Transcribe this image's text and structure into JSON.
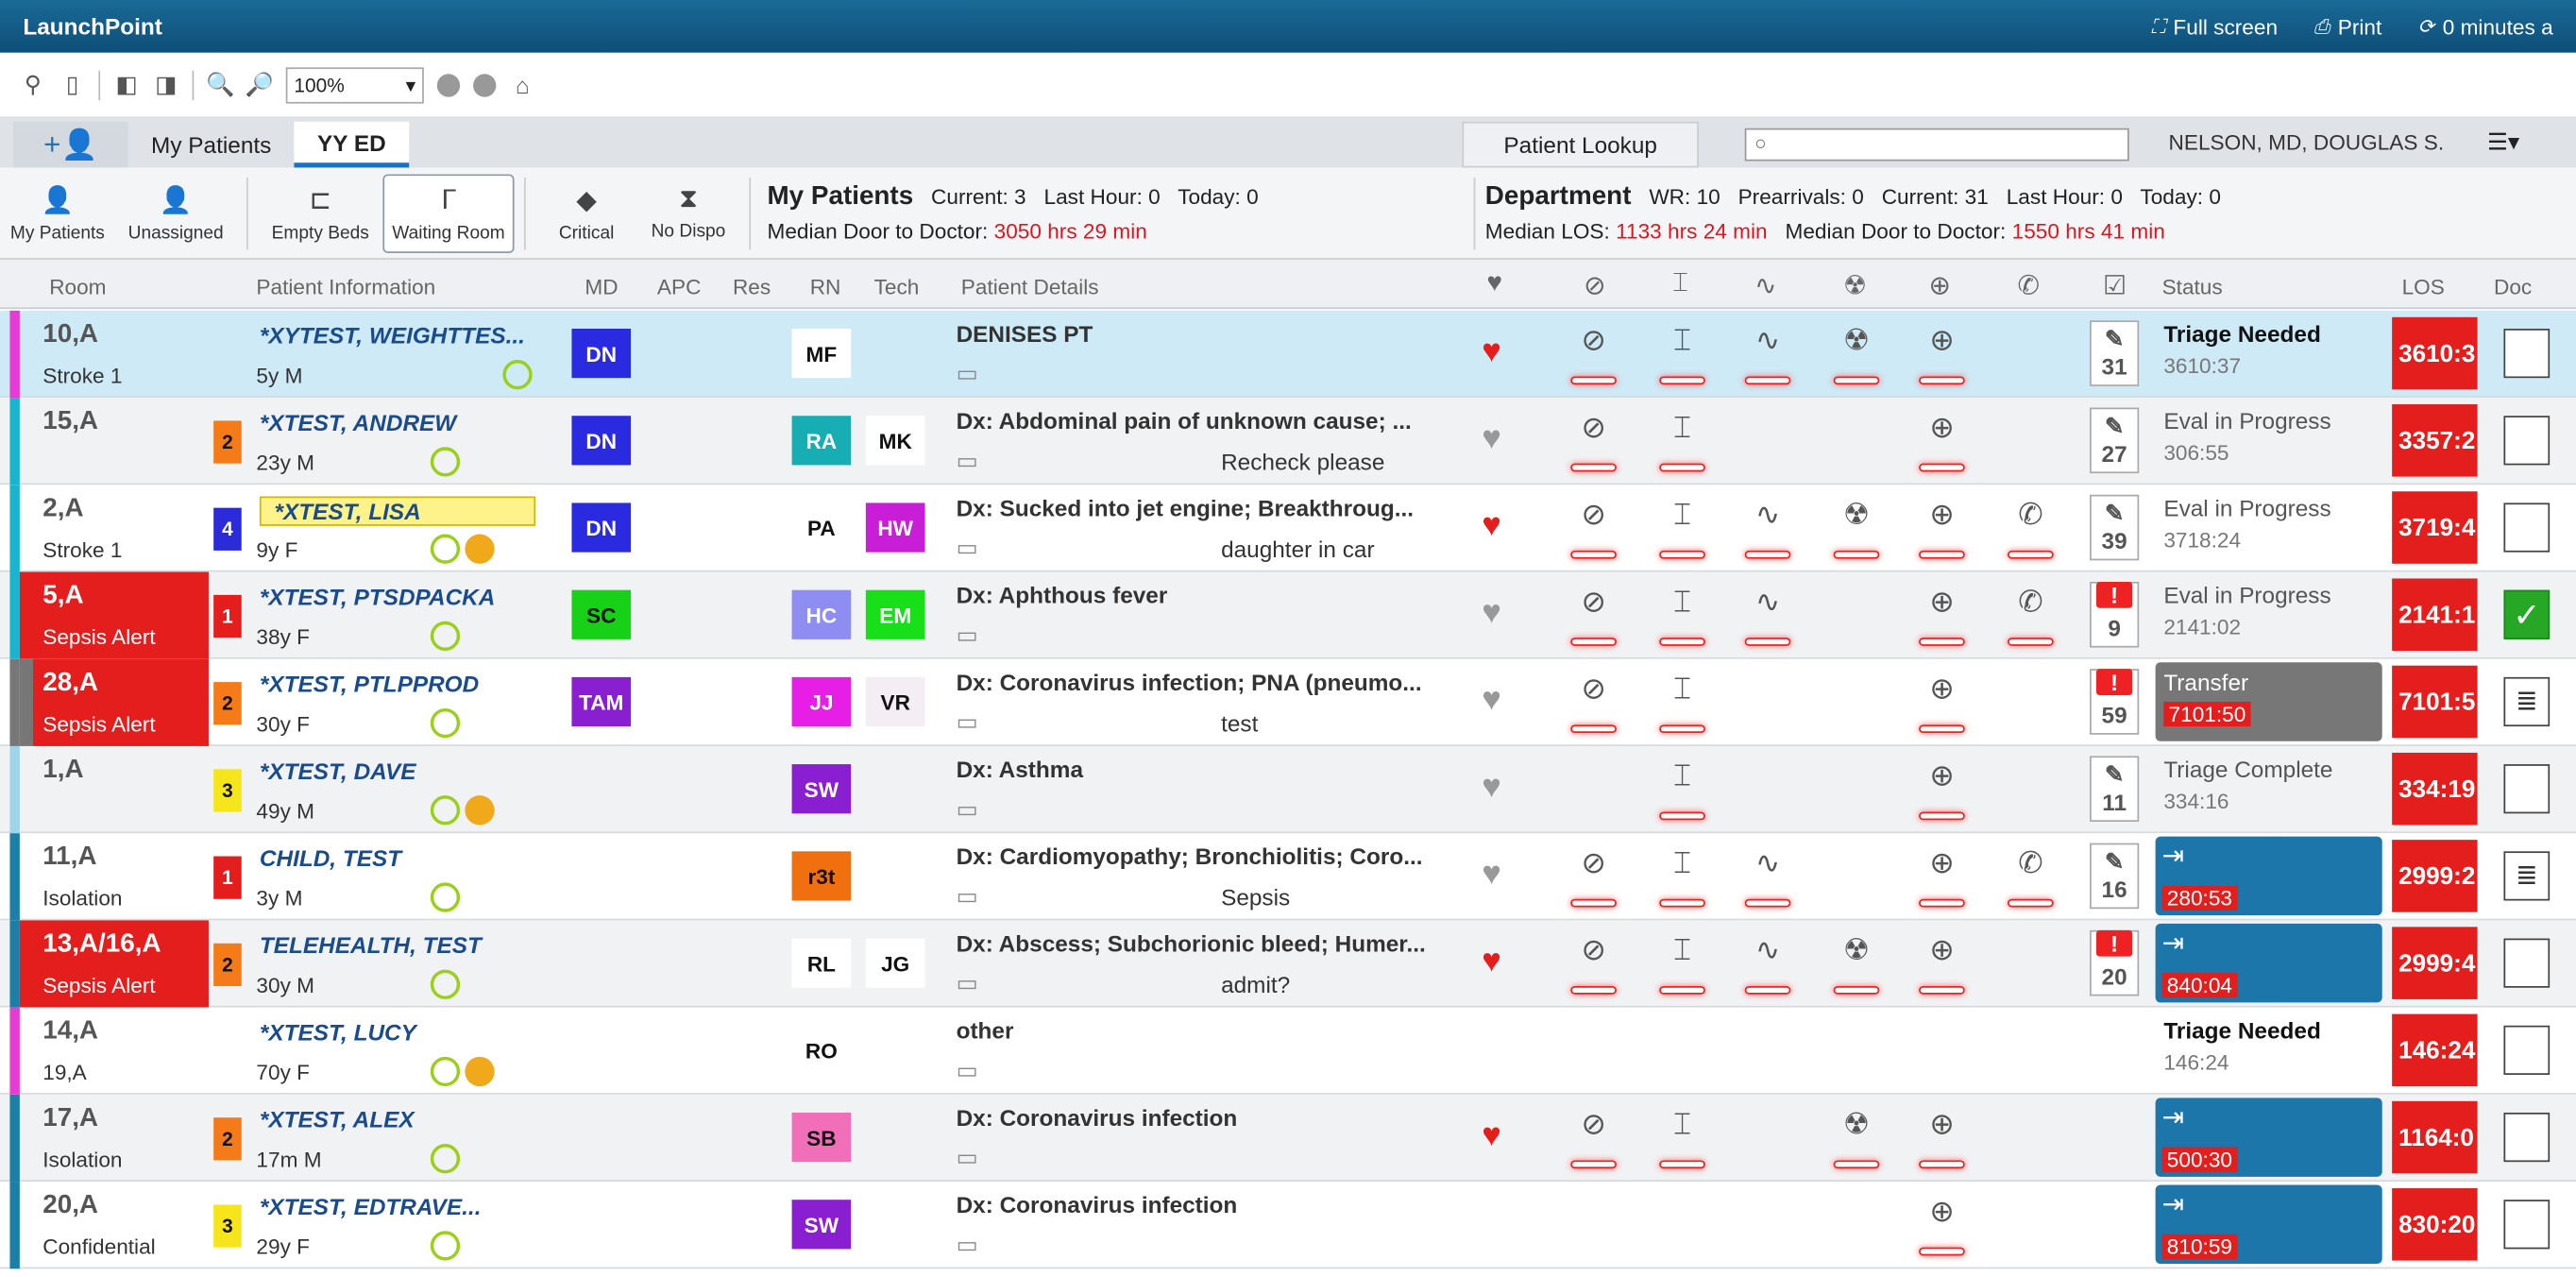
{
  "title": "LaunchPoint",
  "titlebar": {
    "fullscreen": "Full screen",
    "print": "Print",
    "refresh": "0 minutes a"
  },
  "zoom": "100%",
  "tabs": {
    "my": "My Patients",
    "ed": "YY ED",
    "lookup": "Patient Lookup",
    "user": "NELSON, MD, DOUGLAS S.",
    "search_placeholder": ""
  },
  "filters": {
    "my": "My Patients",
    "unassigned": "Unassigned",
    "empty": "Empty Beds",
    "waiting": "Waiting Room",
    "critical": "Critical",
    "nodispo": "No Dispo"
  },
  "mine": {
    "label": "My Patients",
    "current": "Current: 3",
    "lasthour": "Last Hour: 0",
    "today": "Today: 0",
    "median_label": "Median Door to Doctor:",
    "median": "3050 hrs 29 min"
  },
  "dept": {
    "label": "Department",
    "wr": "WR: 10",
    "prearr": "Prearrivals: 0",
    "current": "Current: 31",
    "lasthour": "Last Hour: 0",
    "today": "Today: 0",
    "los_label": "Median LOS:",
    "los": "1133 hrs 24 min",
    "d2d_label": "Median Door to Doctor:",
    "d2d": "1550 hrs 41 min"
  },
  "columns": {
    "room": "Room",
    "pinfo": "Patient Information",
    "md": "MD",
    "apc": "APC",
    "res": "Res",
    "rn": "RN",
    "tech": "Tech",
    "details": "Patient Details",
    "status": "Status",
    "los": "LOS",
    "doc": "Doc"
  },
  "rows": [
    {
      "room": "10,A",
      "sub": "Stroke 1",
      "name": "*XYTEST, WEIGHTTES...",
      "age": "5y M",
      "md": "DN",
      "rn": "MF",
      "tech": "",
      "dx": "DENISES PT",
      "comment": "",
      "status": "Triage Needed",
      "time": "3610:37",
      "los": "3610:3",
      "chk": "31",
      "acuity": ""
    },
    {
      "room": "15,A",
      "sub": "",
      "name": "*XTEST, ANDREW",
      "age": "23y M",
      "md": "DN",
      "rn": "RA",
      "tech": "MK",
      "dx": "Dx: Abdominal pain of unknown cause; ...",
      "comment": "Recheck please",
      "status": "Eval in Progress",
      "time": "306:55",
      "los": "3357:2",
      "chk": "27",
      "acuity": "2"
    },
    {
      "room": "2,A",
      "sub": "Stroke 1",
      "name": "*XTEST, LISA",
      "age": "9y F",
      "md": "DN",
      "rn": "PA",
      "tech": "HW",
      "dx": "Dx: Sucked into jet engine; Breakthroug...",
      "comment": "daughter in car",
      "status": "Eval in Progress",
      "time": "3718:24",
      "los": "3719:4",
      "chk": "39",
      "acuity": "4"
    },
    {
      "room": "5,A",
      "sub": "Sepsis Alert",
      "name": "*XTEST, PTSDPACKA",
      "age": "38y F",
      "md": "SC",
      "rn": "HC",
      "tech": "EM",
      "dx": "Dx: Aphthous fever",
      "comment": "",
      "status": "Eval in Progress",
      "time": "2141:02",
      "los": "2141:1",
      "chk": "9",
      "acuity": "1"
    },
    {
      "room": "28,A",
      "sub": "Sepsis Alert",
      "name": "*XTEST, PTLPPROD",
      "age": "30y F",
      "md": "TAM",
      "rn": "JJ",
      "tech": "VR",
      "dx": "Dx: Coronavirus infection; PNA (pneumo...",
      "comment": "test",
      "status": "Transfer",
      "time": "7101:50",
      "los": "7101:5",
      "chk": "59",
      "acuity": "2"
    },
    {
      "room": "1,A",
      "sub": "",
      "name": "*XTEST, DAVE",
      "age": "49y M",
      "md": "",
      "rn": "SW",
      "tech": "",
      "dx": "Dx: Asthma",
      "comment": "",
      "status": "Triage Complete",
      "time": "334:16",
      "los": "334:19",
      "chk": "11",
      "acuity": "3"
    },
    {
      "room": "11,A",
      "sub": "Isolation",
      "name": "CHILD, TEST",
      "age": "3y M",
      "md": "",
      "rn": "r3t",
      "tech": "",
      "dx": "Dx: Cardiomyopathy; Bronchiolitis; Coro...",
      "comment": "Sepsis",
      "status": "",
      "time": "280:53",
      "los": "2999:2",
      "chk": "16",
      "acuity": "1"
    },
    {
      "room": "13,A/16,A",
      "sub": "Sepsis Alert",
      "name": "TELEHEALTH, TEST",
      "age": "30y M",
      "md": "",
      "rn": "RL",
      "tech": "JG",
      "dx": "Dx: Abscess; Subchorionic bleed; Humer...",
      "comment": "admit?",
      "status": "",
      "time": "840:04",
      "los": "2999:4",
      "chk": "20",
      "acuity": "2"
    },
    {
      "room": "14,A",
      "sub": "19,A",
      "name": "*XTEST, LUCY",
      "age": "70y F",
      "md": "",
      "rn": "RO",
      "tech": "",
      "dx": "other",
      "comment": "",
      "status": "Triage Needed",
      "time": "146:24",
      "los": "146:24",
      "chk": "",
      "acuity": ""
    },
    {
      "room": "17,A",
      "sub": "Isolation",
      "name": "*XTEST, ALEX",
      "age": "17m M",
      "md": "",
      "rn": "SB",
      "tech": "",
      "dx": "Dx: Coronavirus infection",
      "comment": "",
      "status": "",
      "time": "500:30",
      "los": "1164:0",
      "chk": "",
      "acuity": "2"
    },
    {
      "room": "20,A",
      "sub": "Confidential",
      "name": "*XTEST, EDTRAVE...",
      "age": "29y F",
      "md": "",
      "rn": "SW",
      "tech": "",
      "dx": "Dx: Coronavirus infection",
      "comment": "",
      "status": "",
      "time": "810:59",
      "los": "830:20",
      "chk": "",
      "acuity": "3"
    }
  ]
}
